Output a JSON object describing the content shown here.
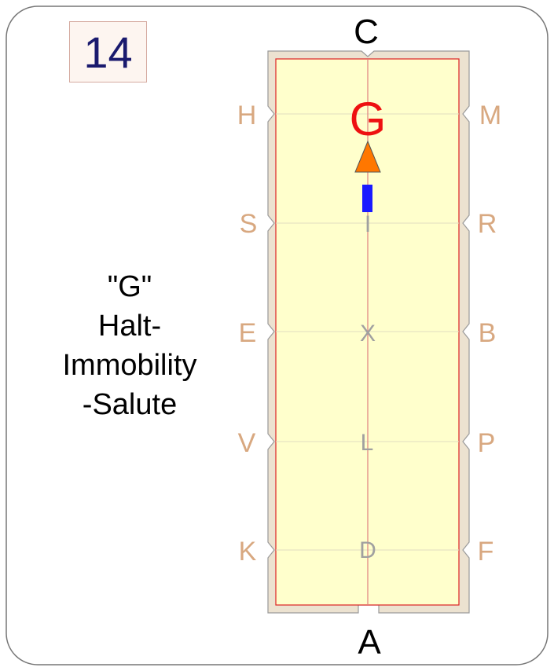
{
  "test": {
    "step_number": "14",
    "instruction_lines": [
      "\"G\"",
      "Halt-",
      "Immobility",
      "-Salute"
    ]
  },
  "arena": {
    "end_letters": {
      "top": "C",
      "bottom": "A"
    },
    "left_letters": [
      "H",
      "S",
      "E",
      "V",
      "K"
    ],
    "right_letters": [
      "M",
      "R",
      "B",
      "P",
      "F"
    ],
    "centerline_letters": [
      "I",
      "X",
      "L",
      "D"
    ],
    "target_letter": "G"
  },
  "colors": {
    "arena_fill": "#ffffcc",
    "arena_border": "#e8dcc8",
    "inner_line": "#dd2222",
    "marker_letters": "#d8a880",
    "centerline_letters": "#a0a0a0",
    "target_letter": "#ee1111",
    "arrow": "#ff7700",
    "halt_bar": "#1a1aff"
  }
}
